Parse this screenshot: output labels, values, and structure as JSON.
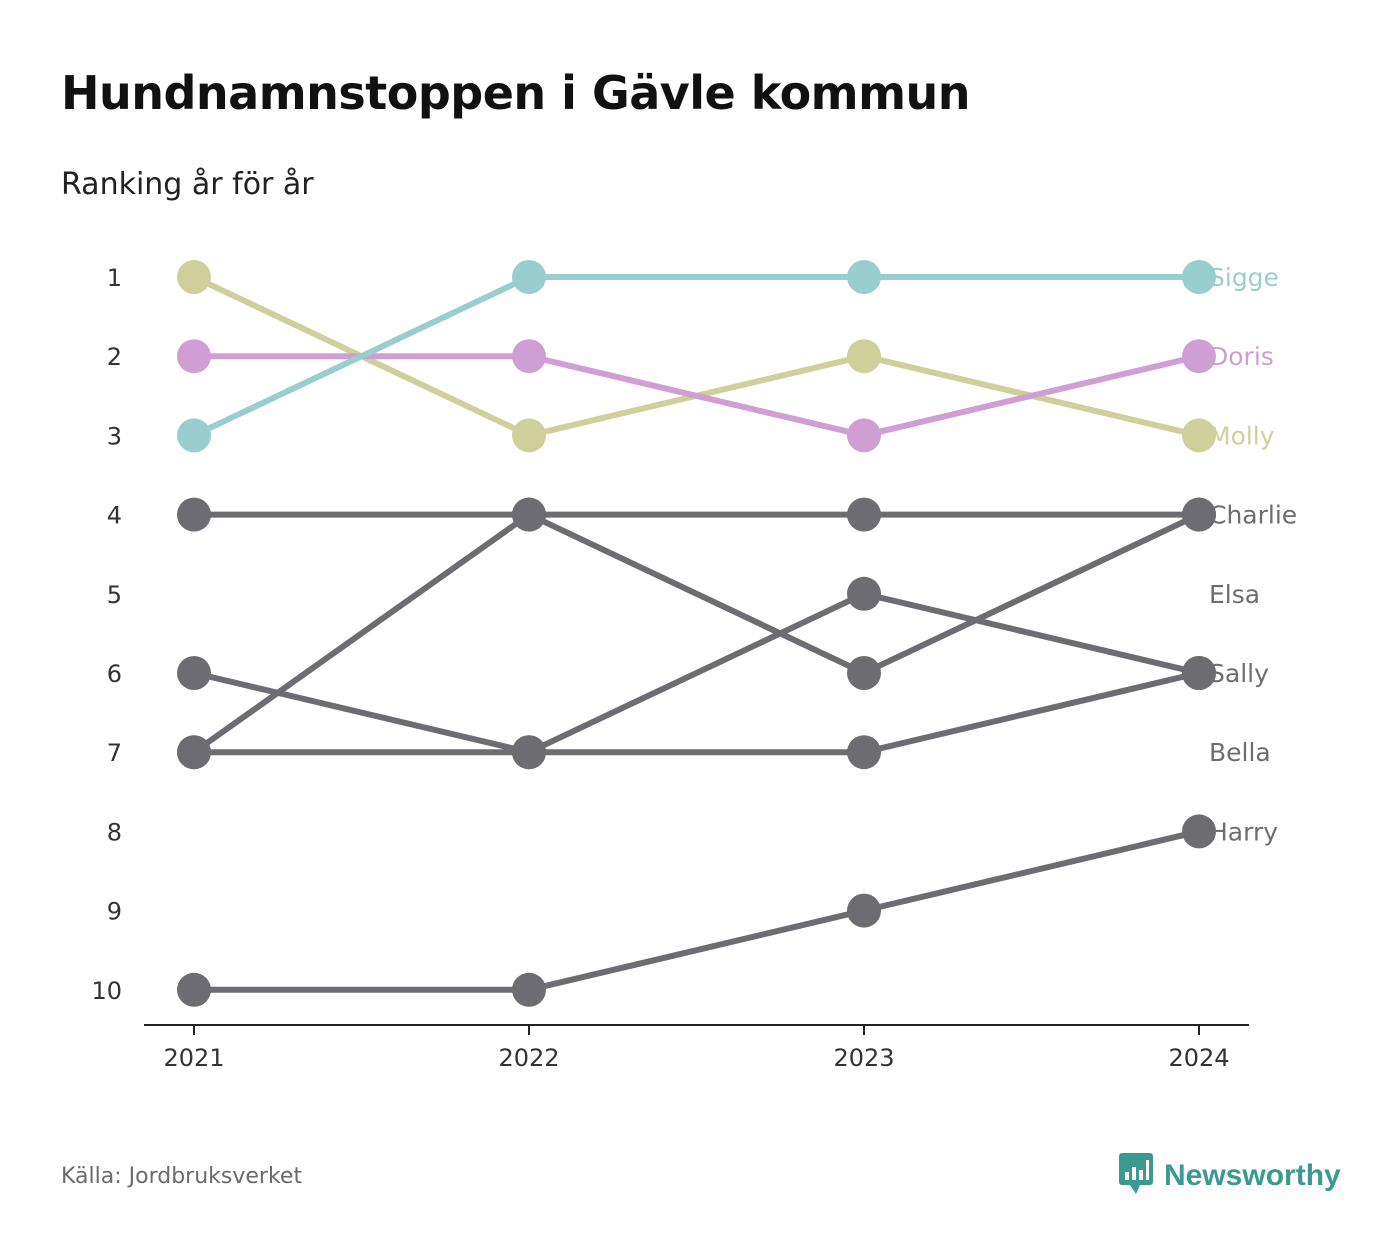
{
  "title": "Hundnamnstoppen i Gävle kommun",
  "subtitle": "Ranking år för år",
  "source": "Källa: Jordbruksverket",
  "brand": {
    "name": "Newsworthy",
    "icon": "newsworthy-logo-icon",
    "color": "#3a9a8f"
  },
  "chart_data": {
    "type": "line",
    "x": [
      "2021",
      "2022",
      "2023",
      "2024"
    ],
    "y_ticks": [
      "1",
      "2",
      "3",
      "4",
      "5",
      "6",
      "7",
      "8",
      "9",
      "10"
    ],
    "ylim": [
      1,
      10
    ],
    "y_reversed": true,
    "grid": false,
    "series": [
      {
        "name": "Charlie",
        "values": [
          4,
          4,
          4,
          4
        ],
        "color": "#6d6c72"
      },
      {
        "name": "Elsa",
        "values": [
          7,
          4,
          6,
          4
        ],
        "color": "#6d6c72"
      },
      {
        "name": "Sally",
        "values": [
          6,
          7,
          7,
          6
        ],
        "color": "#6d6c72"
      },
      {
        "name": "Bella",
        "values": [
          7,
          7,
          5,
          6
        ],
        "color": "#6d6c72"
      },
      {
        "name": "Harry",
        "values": [
          10,
          10,
          9,
          8
        ],
        "color": "#6d6c72"
      },
      {
        "name": "Molly",
        "values": [
          1,
          3,
          2,
          3
        ],
        "color": "#cfcf9c"
      },
      {
        "name": "Doris",
        "values": [
          2,
          2,
          3,
          2
        ],
        "color": "#cf9fd4"
      },
      {
        "name": "Sigge",
        "values": [
          3,
          1,
          1,
          1
        ],
        "color": "#98cecd"
      }
    ],
    "end_labels": [
      {
        "text": "Sigge",
        "rank": 1,
        "color": "#98cecd"
      },
      {
        "text": "Doris",
        "rank": 2,
        "color": "#cf9fd4"
      },
      {
        "text": "Molly",
        "rank": 3,
        "color": "#cfcf9c"
      },
      {
        "text": "Charlie",
        "rank": 4,
        "color": "#6d6c72"
      },
      {
        "text": "Elsa",
        "rank": 5,
        "color": "#6d6c72"
      },
      {
        "text": "Sally",
        "rank": 6,
        "color": "#6d6c72"
      },
      {
        "text": "Bella",
        "rank": 7,
        "color": "#6d6c72"
      },
      {
        "text": "Harry",
        "rank": 8,
        "color": "#6d6c72"
      }
    ]
  }
}
